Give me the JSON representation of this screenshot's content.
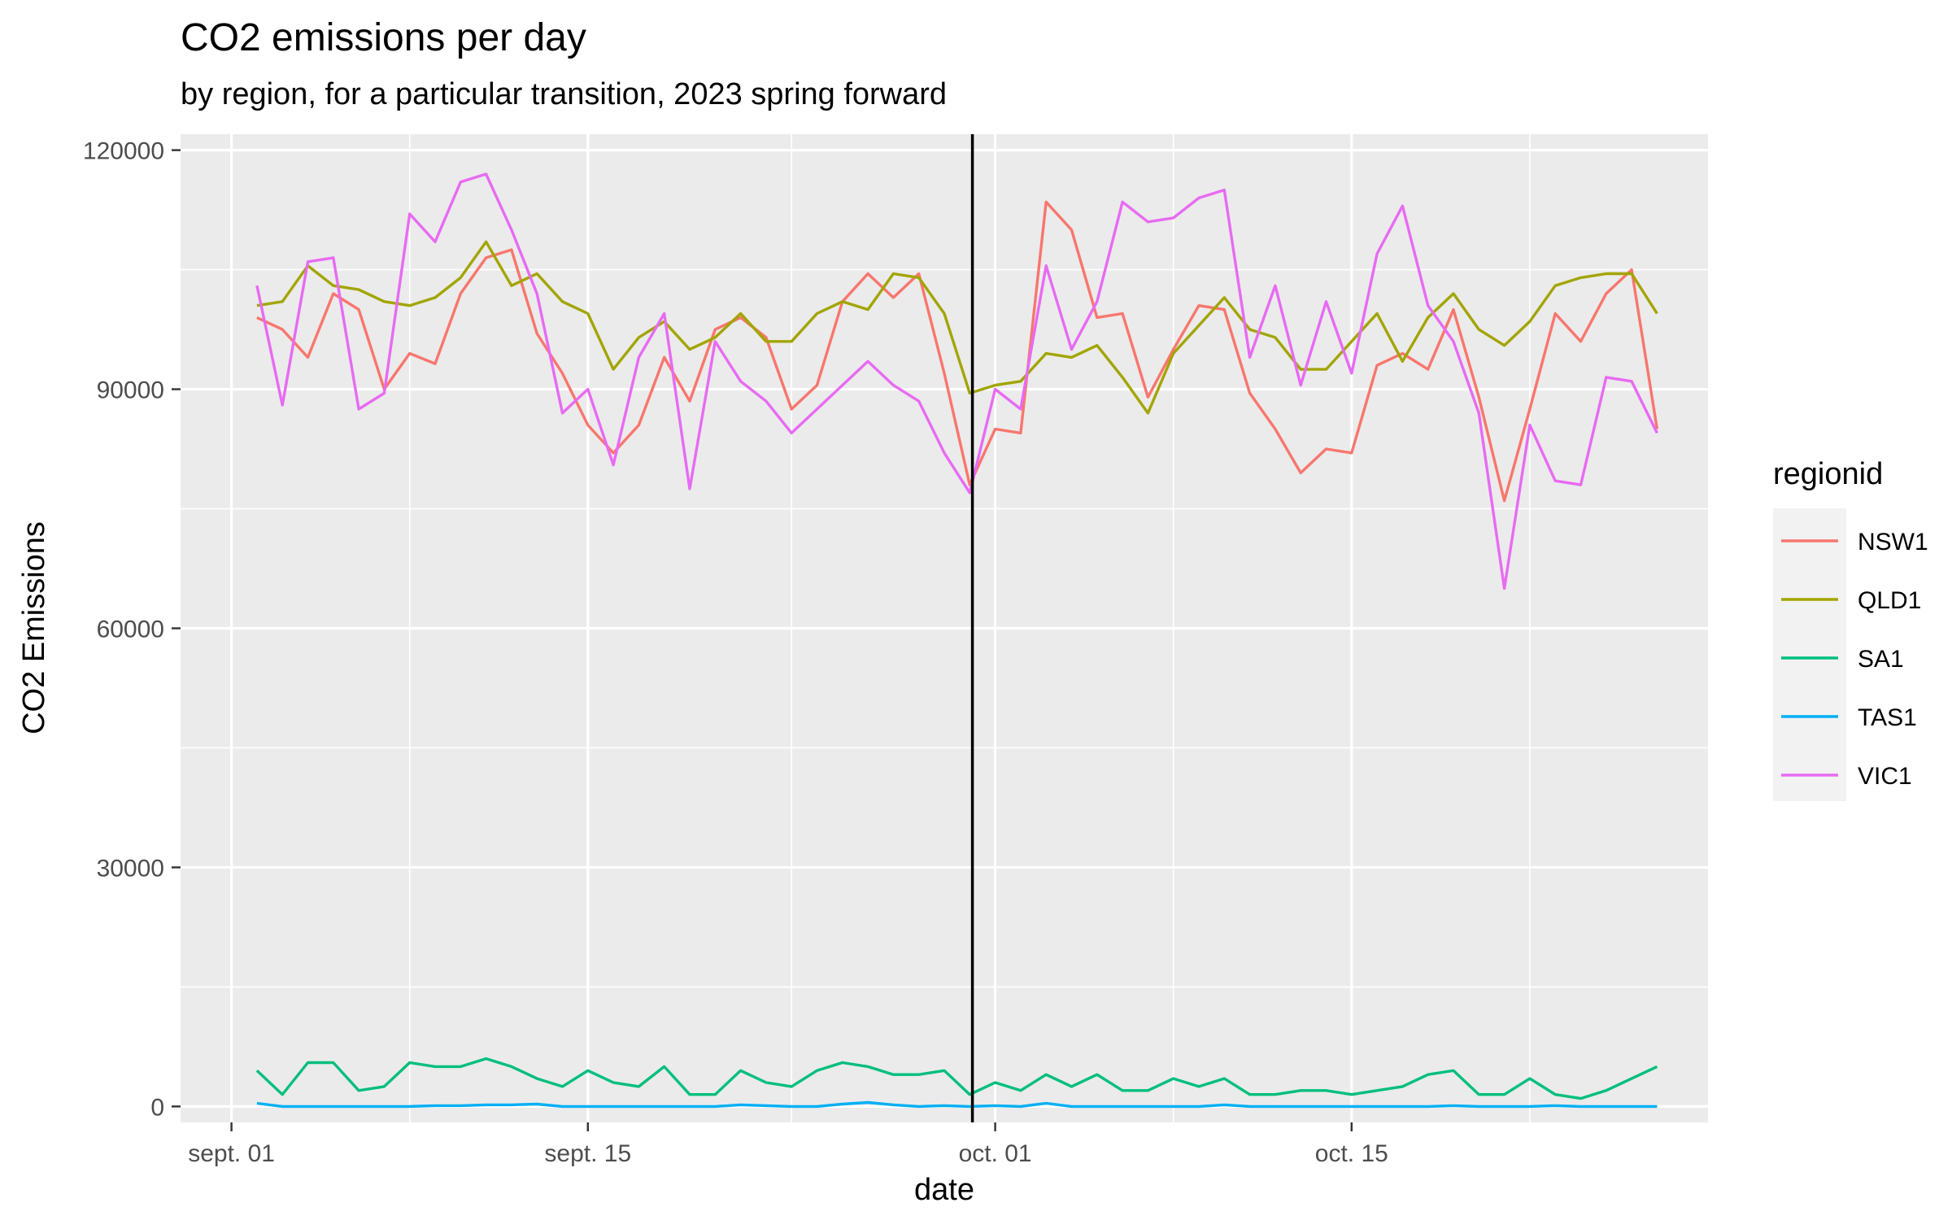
{
  "chart_data": {
    "type": "line",
    "title": "CO2 emissions per day",
    "subtitle": "by region, for a particular transition, 2023 spring forward",
    "xlabel": "date",
    "ylabel": "CO2 Emissions",
    "x_start": "2023-09-02",
    "xlim": [
      "2023-08-30",
      "2023-10-29"
    ],
    "ylim": [
      -2000,
      122000
    ],
    "x_ticks": [
      {
        "date": "2023-09-01",
        "label": "sept. 01"
      },
      {
        "date": "2023-09-15",
        "label": "sept. 15"
      },
      {
        "date": "2023-10-01",
        "label": "oct. 01"
      },
      {
        "date": "2023-10-15",
        "label": "oct. 15"
      }
    ],
    "y_ticks": [
      {
        "value": 0,
        "label": "0"
      },
      {
        "value": 30000,
        "label": "30000"
      },
      {
        "value": 60000,
        "label": "60000"
      },
      {
        "value": 90000,
        "label": "90000"
      },
      {
        "value": 120000,
        "label": "120000"
      }
    ],
    "vline": "2023-10-01",
    "grid": true,
    "legend": {
      "title": "regionid",
      "position": "right"
    },
    "series": [
      {
        "name": "NSW1",
        "color": "#F8766D",
        "values": [
          99000,
          97500,
          94000,
          102000,
          100000,
          90000,
          94500,
          93200,
          102000,
          106500,
          107500,
          97000,
          92000,
          85500,
          82000,
          85500,
          94000,
          88500,
          97500,
          99000,
          96500,
          87500,
          90500,
          101000,
          104500,
          101500,
          104500,
          92000,
          78000,
          85000,
          84500,
          113500,
          110000,
          99000,
          99500,
          89000,
          95000,
          100500,
          100000,
          89500,
          85000,
          79500,
          82500,
          82000,
          93000,
          94500,
          92500,
          100000,
          89000,
          76000,
          87500,
          99500,
          96000,
          102000,
          105000,
          85000
        ]
      },
      {
        "name": "QLD1",
        "color": "#A3A500",
        "values": [
          100500,
          101000,
          105500,
          103000,
          102500,
          101000,
          100500,
          101500,
          104000,
          108500,
          103000,
          104500,
          101000,
          99500,
          92500,
          96500,
          98500,
          95000,
          96500,
          99500,
          96000,
          96000,
          99500,
          101000,
          100000,
          104500,
          104000,
          99500,
          89500,
          90500,
          91000,
          94500,
          94000,
          95500,
          91500,
          87000,
          94500,
          98000,
          101500,
          97500,
          96500,
          92500,
          92500,
          96000,
          99500,
          93500,
          99000,
          102000,
          97500,
          95500,
          98500,
          103000,
          104000,
          104500,
          104500,
          99500
        ]
      },
      {
        "name": "SA1",
        "color": "#00BF7D",
        "values": [
          4500,
          1500,
          5500,
          5500,
          2000,
          2500,
          5500,
          5000,
          5000,
          6000,
          5000,
          3500,
          2500,
          4500,
          3000,
          2500,
          5000,
          1500,
          1500,
          4500,
          3000,
          2500,
          4500,
          5500,
          5000,
          4000,
          4000,
          4500,
          1500,
          3000,
          2000,
          4000,
          2500,
          4000,
          2000,
          2000,
          3500,
          2500,
          3500,
          1500,
          1500,
          2000,
          2000,
          1500,
          2000,
          2500,
          4000,
          4500,
          1500,
          1500,
          3500,
          1500,
          1000,
          2000,
          3500,
          5000
        ]
      },
      {
        "name": "TAS1",
        "color": "#00B0F6",
        "values": [
          400,
          0,
          0,
          0,
          0,
          0,
          0,
          100,
          100,
          200,
          200,
          300,
          0,
          0,
          0,
          0,
          0,
          0,
          0,
          200,
          100,
          0,
          0,
          300,
          500,
          200,
          0,
          100,
          0,
          100,
          0,
          400,
          0,
          0,
          0,
          0,
          0,
          0,
          200,
          0,
          0,
          0,
          0,
          0,
          0,
          0,
          0,
          100,
          0,
          0,
          0,
          100,
          0,
          0,
          0,
          0
        ]
      },
      {
        "name": "VIC1",
        "color": "#E76BF3",
        "values": [
          103000,
          88000,
          106000,
          106500,
          87500,
          89500,
          112000,
          108500,
          116000,
          117000,
          110000,
          102000,
          87000,
          90000,
          80500,
          94000,
          99500,
          77500,
          96000,
          91000,
          88500,
          84500,
          87500,
          90500,
          93500,
          90500,
          88500,
          82000,
          77000,
          90000,
          87500,
          105500,
          95000,
          101000,
          113500,
          111000,
          111500,
          114000,
          115000,
          94000,
          103000,
          90500,
          101000,
          92000,
          107000,
          113000,
          100500,
          96000,
          87000,
          65000,
          85500,
          78500,
          78000,
          91500,
          91000,
          84500
        ]
      }
    ]
  }
}
